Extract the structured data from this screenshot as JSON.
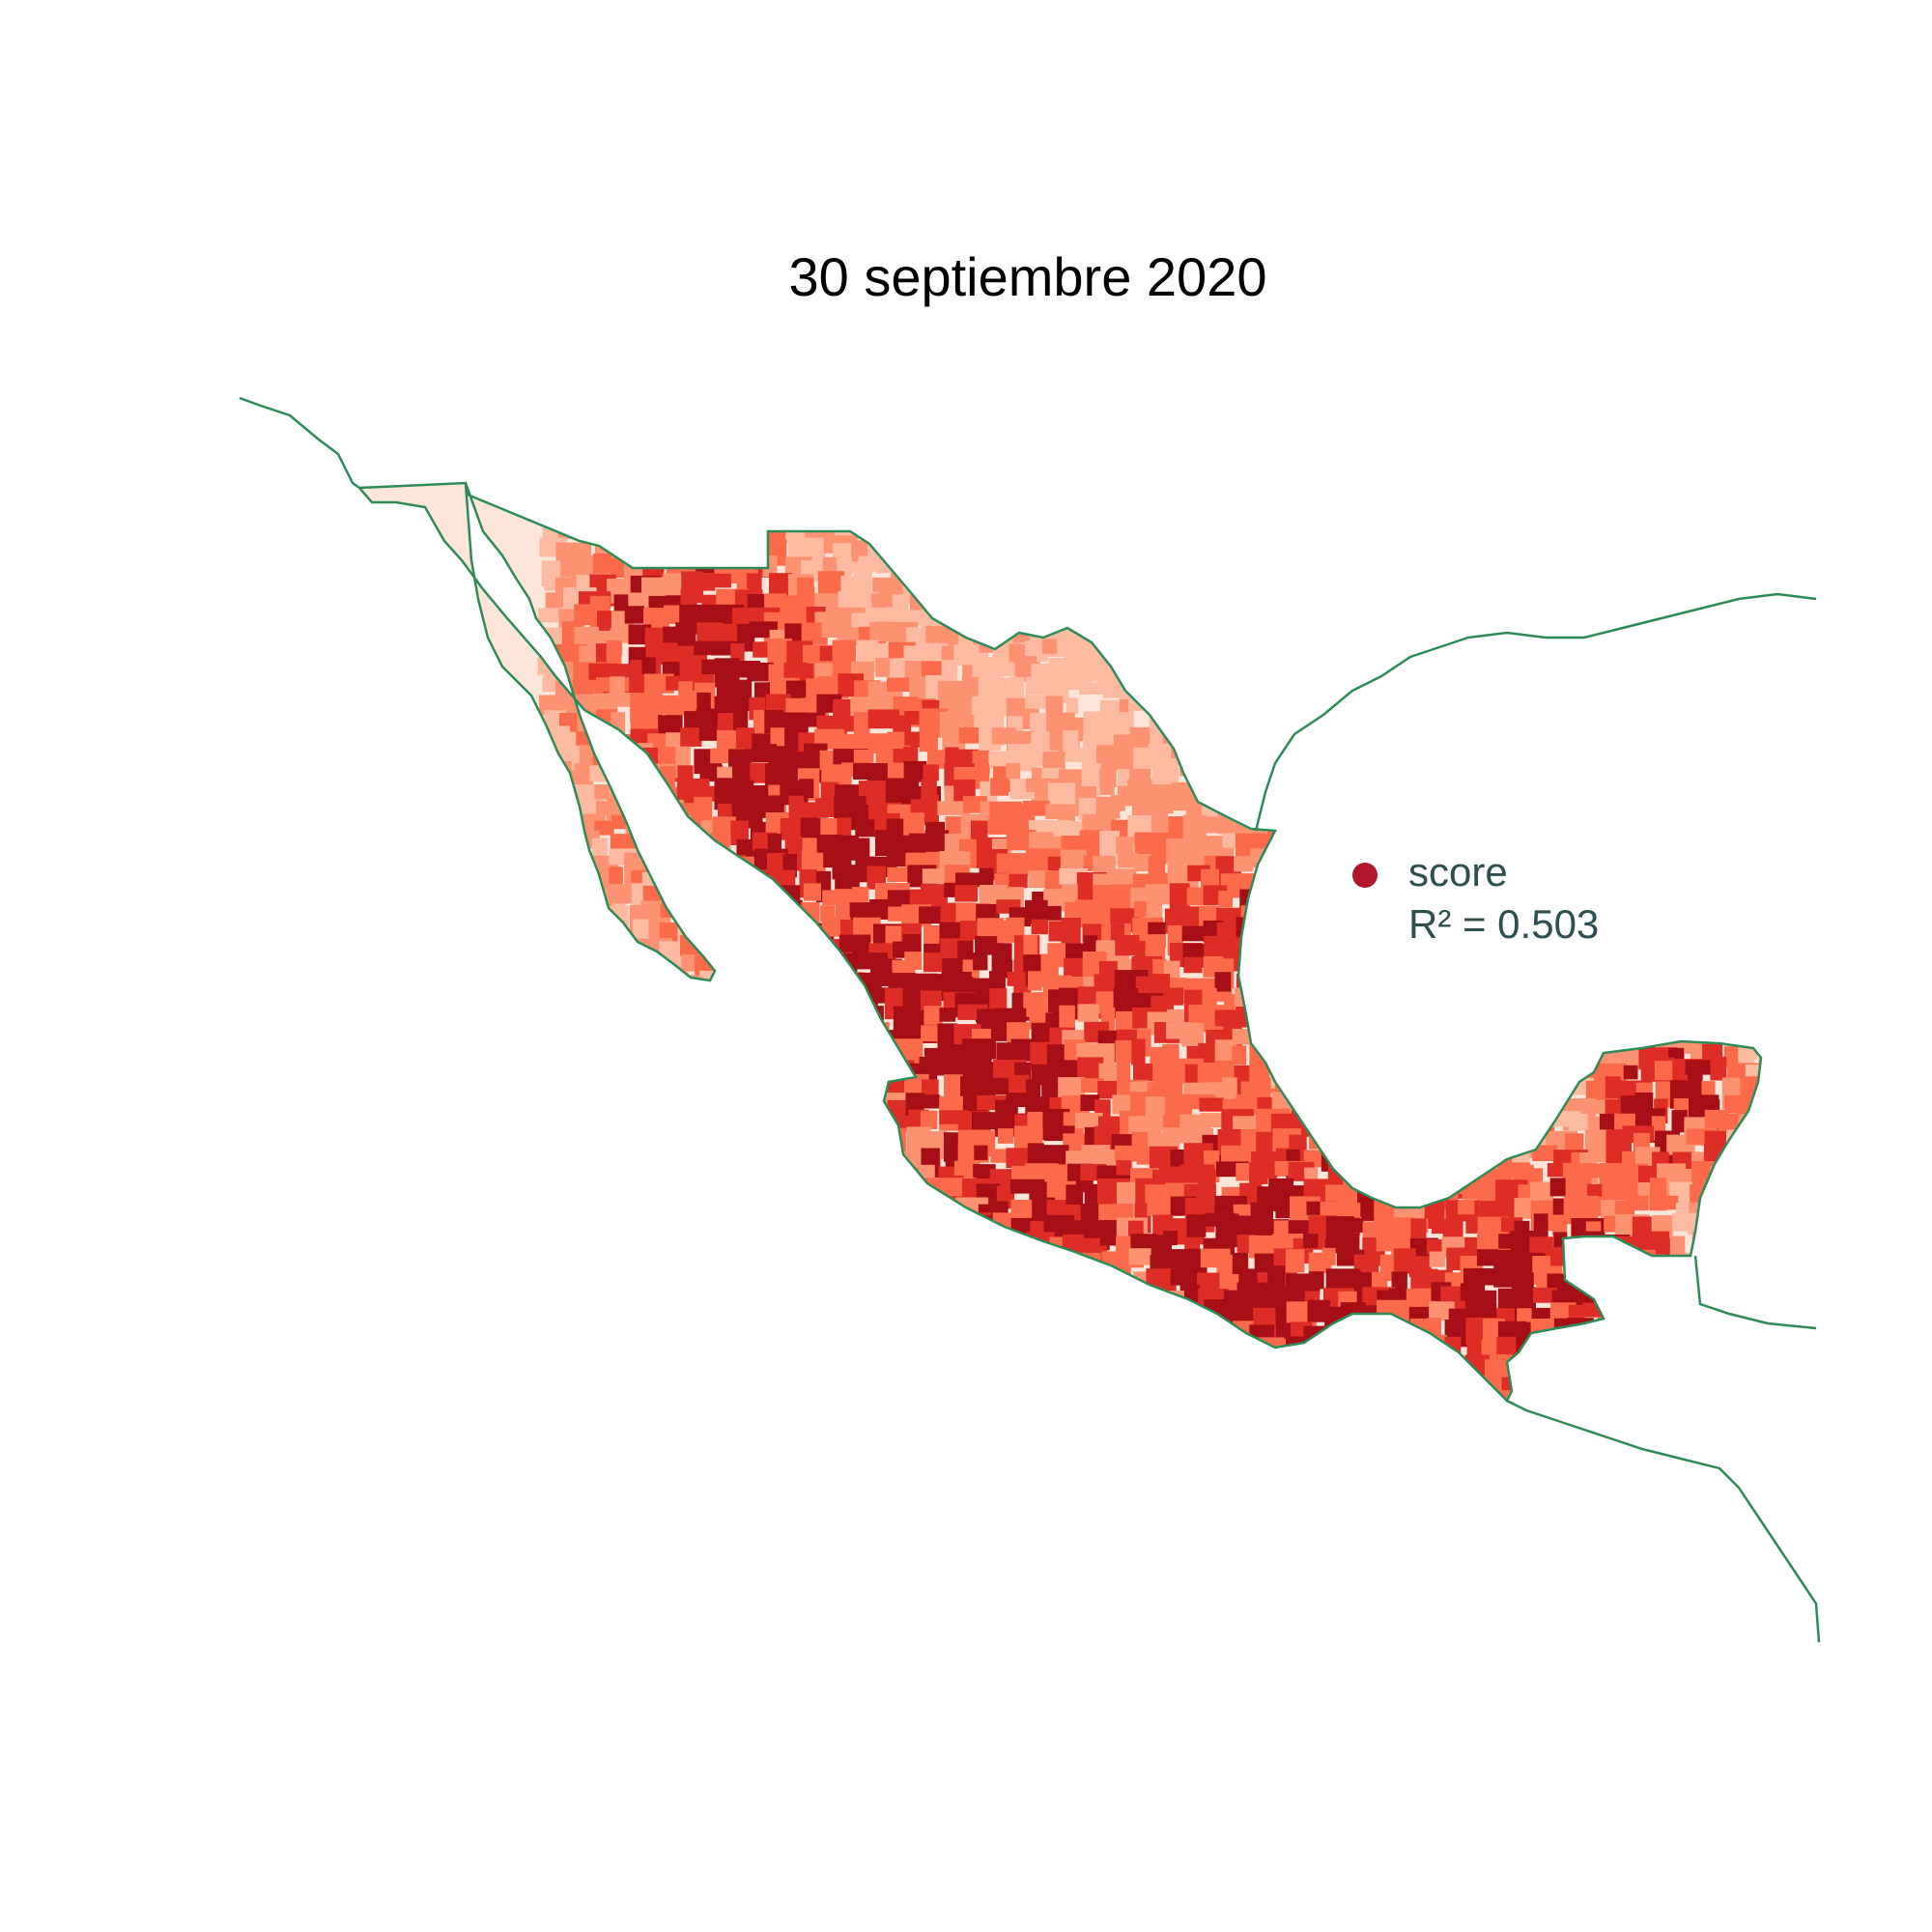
{
  "title": "30 septiembre 2020",
  "legend": {
    "label": "score",
    "r2_text": "R² = 0.503",
    "dot_color": "#b2182b"
  },
  "colors": {
    "outline": "#2e8b57",
    "ramp": [
      "#fee5d9",
      "#fcbba1",
      "#fc9272",
      "#fb6a4a",
      "#de2d26",
      "#a50f15"
    ]
  },
  "map": {
    "region": "Mexico municipalities choropleth",
    "neighbors_outline": true
  }
}
